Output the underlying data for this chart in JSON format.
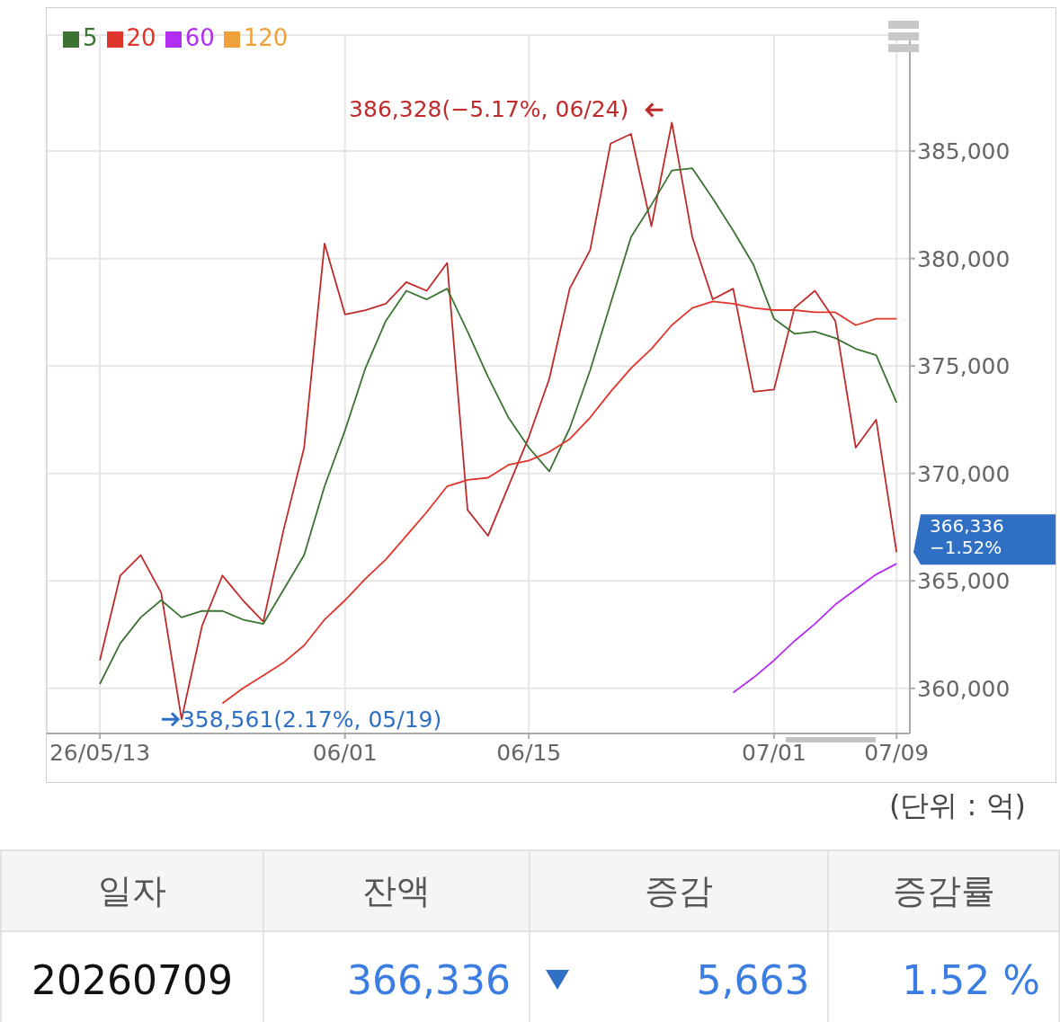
{
  "chart_data": {
    "type": "line",
    "categories": [
      "26/05/13",
      null,
      null,
      null,
      null,
      null,
      null,
      null,
      null,
      null,
      null,
      null,
      "06/01",
      null,
      null,
      null,
      null,
      null,
      null,
      null,
      null,
      "06/15",
      null,
      null,
      null,
      null,
      null,
      null,
      null,
      null,
      null,
      null,
      null,
      "07/01",
      null,
      null,
      null,
      null,
      null,
      "07/09"
    ],
    "series": [
      {
        "color": "#bf2a2a",
        "values": [
          361300,
          365250,
          366200,
          364450,
          358561,
          362900,
          365250,
          364100,
          363100,
          367400,
          371200,
          380700,
          377400,
          377600,
          377900,
          378900,
          378500,
          379800,
          368300,
          367100,
          369400,
          371700,
          374400,
          378600,
          380400,
          385350,
          385800,
          381500,
          386328,
          381000,
          378100,
          378600,
          373800,
          373900,
          377700,
          378500,
          377100,
          371200,
          372500,
          366336
        ]
      },
      {
        "name": "5",
        "color": "#3a7430",
        "values": [
          360200,
          362100,
          363300,
          364100,
          363300,
          363600,
          363600,
          363200,
          363000,
          364600,
          366200,
          369400,
          372000,
          374900,
          377100,
          378500,
          378100,
          378600,
          376600,
          374500,
          372600,
          371200,
          370100,
          372100,
          374800,
          377900,
          381000,
          382500,
          384100,
          384200,
          382800,
          381300,
          379700,
          377200,
          376500,
          376600,
          376300,
          375800,
          375500,
          373300
        ]
      },
      {
        "name": "20",
        "color": "#e0352b",
        "values": [
          null,
          null,
          null,
          null,
          null,
          null,
          359300,
          360000,
          360600,
          361200,
          362000,
          363200,
          364100,
          365100,
          366000,
          367100,
          368200,
          369400,
          369700,
          369800,
          370400,
          370600,
          371000,
          371600,
          372600,
          373800,
          374900,
          375800,
          376900,
          377700,
          378000,
          377900,
          377700,
          377600,
          377600,
          377500,
          377500,
          376900,
          377200,
          377200
        ]
      },
      {
        "name": "60",
        "color": "#b22ef0",
        "values": [
          null,
          null,
          null,
          null,
          null,
          null,
          null,
          null,
          null,
          null,
          null,
          null,
          null,
          null,
          null,
          null,
          null,
          null,
          null,
          null,
          null,
          null,
          null,
          null,
          null,
          null,
          null,
          null,
          null,
          null,
          null,
          359800,
          360500,
          361300,
          362200,
          363000,
          363900,
          364600,
          365300,
          365800
        ]
      },
      {
        "name": "120",
        "color": "#f0a23a",
        "values": [
          null,
          null,
          null,
          null,
          null,
          null,
          null,
          null,
          null,
          null,
          null,
          null,
          null,
          null,
          null,
          null,
          null,
          null,
          null,
          null,
          null,
          null,
          null,
          null,
          null,
          null,
          null,
          null,
          null,
          null,
          null,
          null,
          null,
          null,
          null,
          null,
          null,
          null,
          null,
          null
        ]
      }
    ],
    "ylim": [
      357900,
      390400
    ],
    "yticks": [
      {
        "value": 360000,
        "label": "360,000"
      },
      {
        "value": 365000,
        "label": "365,000"
      },
      {
        "value": 370000,
        "label": "370,000"
      },
      {
        "value": 375000,
        "label": "375,000"
      },
      {
        "value": 380000,
        "label": "380,000"
      },
      {
        "value": 385000,
        "label": "385,000"
      }
    ],
    "grid": true,
    "legend": "top left",
    "marker": "none",
    "annotations": [
      "386,328(−5.17%, 06/24)",
      "358,561(2.17%, 05/19)",
      "366,336\n−1.52%",
      "(단위 : 억)",
      "일자",
      "잔액",
      "증감",
      "증감률",
      "20260709",
      "366,336",
      "5,663",
      "1.52 %"
    ]
  }
}
